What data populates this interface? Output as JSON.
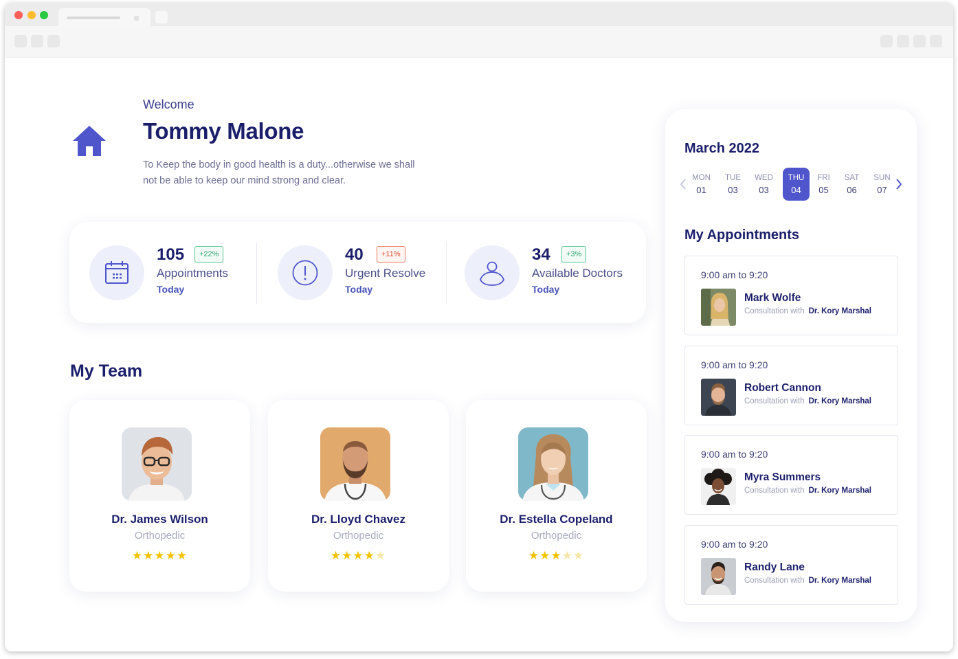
{
  "header": {
    "welcome": "Welcome",
    "user_name": "Tommy Malone",
    "quote": "To Keep the body in good health is a duty...otherwise we shall not be able to keep our mind strong and clear."
  },
  "stats": [
    {
      "value": "105",
      "badge": "+22%",
      "label": "Appointments",
      "sub": "Today",
      "icon": "calendar-icon"
    },
    {
      "value": "40",
      "badge": "+11%",
      "label": "Urgent Resolve",
      "sub": "Today",
      "icon": "exclamation-icon"
    },
    {
      "value": "34",
      "badge": "+3%",
      "label": "Available Doctors",
      "sub": "Today",
      "icon": "user-icon"
    }
  ],
  "team": {
    "title": "My Team",
    "members": [
      {
        "name": "Dr. James Wilson",
        "specialty": "Orthopedic",
        "rating": 5
      },
      {
        "name": "Dr. Lloyd Chavez",
        "specialty": "Orthopedic",
        "rating": 4
      },
      {
        "name": "Dr. Estella Copeland",
        "specialty": "Orthopedic",
        "rating": 3
      }
    ]
  },
  "calendar": {
    "month": "March 2022",
    "days": [
      {
        "name": "MON",
        "date": "01"
      },
      {
        "name": "TUE",
        "date": "03"
      },
      {
        "name": "WED",
        "date": "03"
      },
      {
        "name": "THU",
        "date": "04"
      },
      {
        "name": "FRI",
        "date": "05"
      },
      {
        "name": "SAT",
        "date": "06"
      },
      {
        "name": "SUN",
        "date": "07"
      }
    ],
    "selected_date": "04"
  },
  "appointments": {
    "title": "My Appointments",
    "items": [
      {
        "time": "9:00 am to 9:20",
        "patient": "Mark Wolfe",
        "with_label": "Consultation with",
        "doctor": "Dr. Kory Marshal"
      },
      {
        "time": "9:00 am to 9:20",
        "patient": "Robert Cannon",
        "with_label": "Consultation with",
        "doctor": "Dr. Kory Marshal"
      },
      {
        "time": "9:00 am to 9:20",
        "patient": "Myra Summers",
        "with_label": "Consultation with",
        "doctor": "Dr. Kory Marshal"
      },
      {
        "time": "9:00 am to 9:20",
        "patient": "Randy Lane",
        "with_label": "Consultation with",
        "doctor": "Dr. Kory Marshal"
      }
    ]
  },
  "colors": {
    "primary": "#4f56cc",
    "heading": "#1b1f6b",
    "badge_green": "#2aa56d",
    "badge_red": "#d9482b",
    "star": "#f2c200"
  }
}
